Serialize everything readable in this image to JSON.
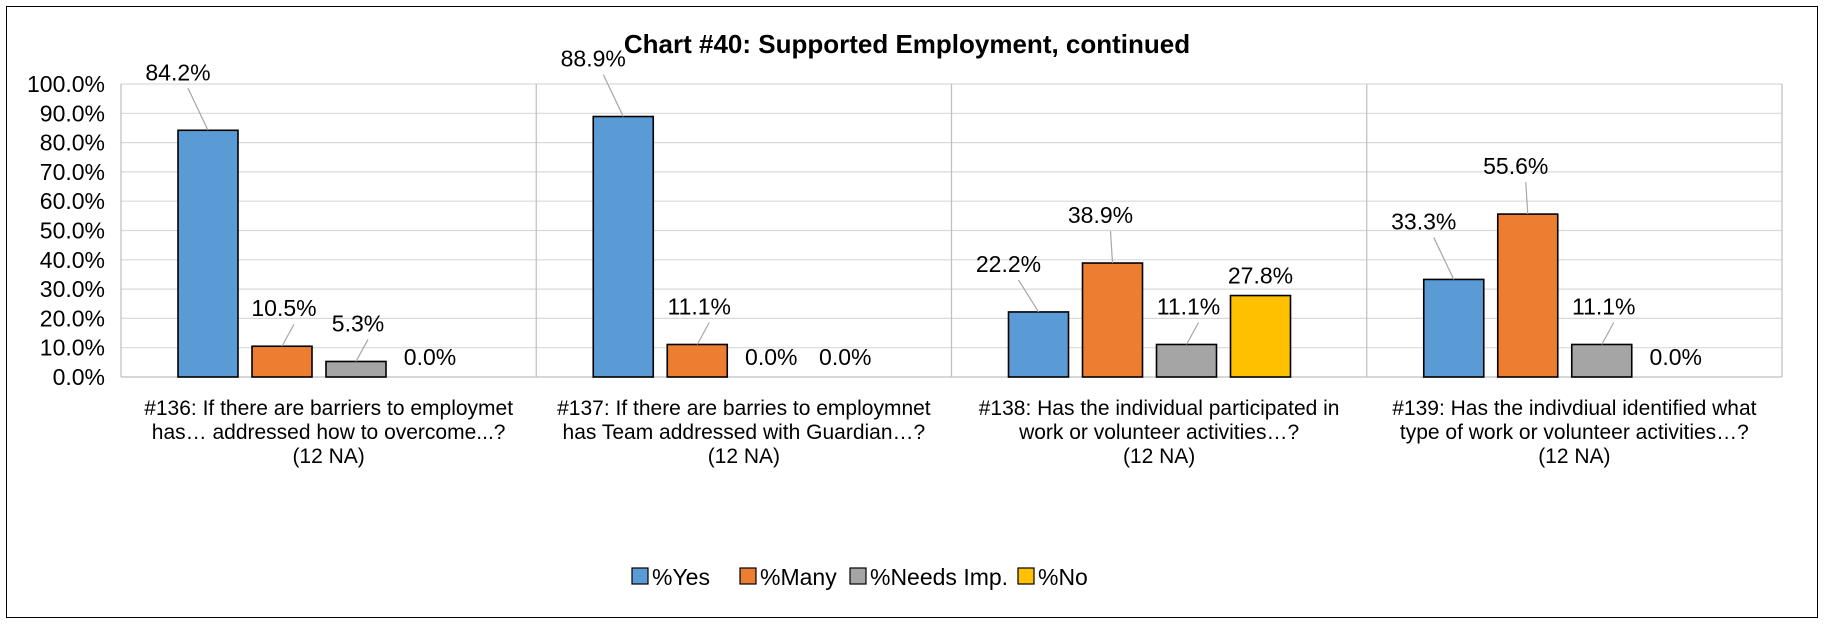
{
  "chart_data": {
    "type": "bar",
    "title": "Chart #40: Supported Employment, continued",
    "xlabel": "",
    "ylabel": "",
    "ylim": [
      0,
      100
    ],
    "yticks": [
      "0.0%",
      "10.0%",
      "20.0%",
      "30.0%",
      "40.0%",
      "50.0%",
      "60.0%",
      "70.0%",
      "80.0%",
      "90.0%",
      "100.0%"
    ],
    "grid": true,
    "legend_position": "bottom",
    "categories": [
      [
        "#136: If there are barriers to employmet",
        "has… addressed how to overcome...?",
        "(12 NA)"
      ],
      [
        "#137: If there are barries to employmnet",
        "has Team addressed with Guardian…?",
        "(12 NA)"
      ],
      [
        "#138: Has the individual participated in",
        "work or volunteer activities…?",
        "(12 NA)"
      ],
      [
        "#139: Has the indivdiual identified what",
        "type of work or volunteer activities…?",
        "(12 NA)"
      ]
    ],
    "series": [
      {
        "name": "%Yes",
        "color": "#5B9BD5",
        "values": [
          84.2,
          88.9,
          22.2,
          33.3
        ],
        "labels": [
          "84.2%",
          "88.9%",
          "22.2%",
          "33.3%"
        ]
      },
      {
        "name": "%Many",
        "color": "#ED7D31",
        "values": [
          10.5,
          11.1,
          38.9,
          55.6
        ],
        "labels": [
          "10.5%",
          "11.1%",
          "38.9%",
          "55.6%"
        ]
      },
      {
        "name": "%Needs Imp.",
        "color": "#A5A5A5",
        "values": [
          5.3,
          0.0,
          11.1,
          11.1
        ],
        "labels": [
          "5.3%",
          "0.0%",
          "11.1%",
          "11.1%"
        ]
      },
      {
        "name": "%No",
        "color": "#FFC000",
        "values": [
          0.0,
          0.0,
          27.8,
          0.0
        ],
        "labels": [
          "0.0%",
          "0.0%",
          "27.8%",
          "0.0%"
        ]
      }
    ]
  }
}
